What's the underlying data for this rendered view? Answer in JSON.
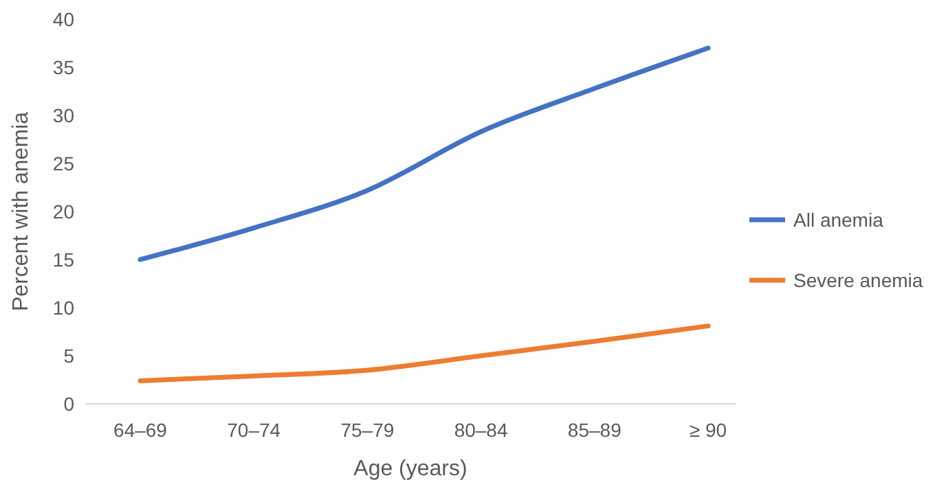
{
  "chart_data": {
    "type": "line",
    "xlabel": "Age (years)",
    "ylabel": "Percent with anemia",
    "categories": [
      "64–69",
      "70–74",
      "75–79",
      "80–84",
      "85–89",
      "≥ 90"
    ],
    "series": [
      {
        "name": "All anemia",
        "color": "#4472c4",
        "values": [
          15,
          18.3,
          22.2,
          28.3,
          32.8,
          37
        ]
      },
      {
        "name": "Severe anemia",
        "color": "#ed7d31",
        "values": [
          2.4,
          2.9,
          3.5,
          5,
          6.5,
          8.1
        ]
      }
    ],
    "ylim": [
      0,
      40
    ],
    "yticks": [
      0,
      5,
      10,
      15,
      20,
      25,
      30,
      35,
      40
    ],
    "grid": false,
    "legend": "right",
    "marker": "none",
    "line_style": "solid"
  }
}
